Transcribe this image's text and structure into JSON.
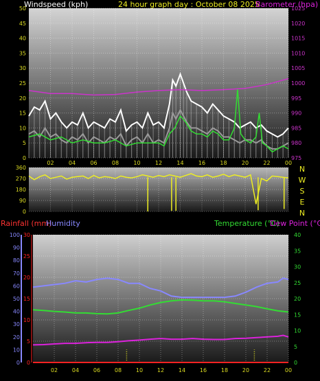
{
  "header": {
    "windspeed_label": "Windspeed (kph)",
    "title": "24 hour graph day : October 08 2025",
    "barometer_label": "Barometer (hpa)"
  },
  "panel2": {
    "directions": [
      "N",
      "W",
      "S",
      "E",
      "N"
    ]
  },
  "panel3_header": {
    "rainfall_label": "Rainfall (mm)",
    "humidity_label": "Humidity",
    "temperature_label": "Temperature (°C)",
    "dewpoint_label": "Dew Point (°C)"
  },
  "colors": {
    "wind": "#ffffff",
    "gust_dark": "#9a9a9a",
    "avg_wind": "#33dd33",
    "barometer": "#cc33cc",
    "direction": "#eeee22",
    "rainfall": "#ff2222",
    "humidity": "#8888ff",
    "temperature": "#33dd33",
    "dewpoint": "#dd22dd",
    "tick_text": "#dddd22"
  },
  "chart_data": [
    {
      "type": "line",
      "name": "wind-barometer",
      "x_ticks": [
        "02",
        "04",
        "06",
        "08",
        "10",
        "12",
        "14",
        "16",
        "18",
        "20",
        "22",
        "00"
      ],
      "y_left_ticks": [
        "0",
        "5",
        "10",
        "15",
        "20",
        "25",
        "30",
        "35",
        "40",
        "45",
        "50"
      ],
      "y_right_ticks": [
        "975",
        "980",
        "985",
        "990",
        "995",
        "1000",
        "1005",
        "1010",
        "1015",
        "1020",
        "1025"
      ],
      "ylim_left": [
        0,
        50
      ],
      "ylim_right": [
        975,
        1025
      ],
      "xlim": [
        0,
        24
      ],
      "series": [
        {
          "name": "Windspeed (kph)",
          "role": "gust",
          "x": [
            0,
            0.5,
            1,
            1.5,
            2,
            2.5,
            3,
            3.5,
            4,
            4.5,
            5,
            5.5,
            6,
            6.5,
            7,
            7.5,
            8,
            8.5,
            9,
            9.5,
            10,
            10.5,
            11,
            11.5,
            12,
            12.5,
            13,
            13.3,
            13.6,
            14,
            14.3,
            14.6,
            15,
            15.5,
            16,
            16.5,
            17,
            17.5,
            18,
            18.5,
            19,
            19.5,
            20,
            20.5,
            21,
            21.5,
            22,
            22.5,
            23,
            23.5,
            24
          ],
          "values": [
            14,
            17,
            16,
            19,
            13,
            15,
            12,
            10,
            12,
            11,
            15,
            10,
            12,
            11,
            10,
            13,
            12,
            16,
            9,
            11,
            12,
            10,
            15,
            11,
            12,
            10,
            18,
            26,
            24,
            28,
            25,
            22,
            19,
            18,
            17,
            15,
            18,
            16,
            14,
            13,
            12,
            10,
            11,
            12,
            10,
            11,
            9,
            8,
            7,
            8,
            10
          ]
        },
        {
          "name": "Windspeed (kph)",
          "role": "wind",
          "x": [
            0,
            0.5,
            1,
            1.5,
            2,
            2.5,
            3,
            3.5,
            4,
            4.5,
            5,
            5.5,
            6,
            6.5,
            7,
            7.5,
            8,
            8.5,
            9,
            9.5,
            10,
            10.5,
            11,
            11.5,
            12,
            12.5,
            13,
            13.3,
            13.6,
            14,
            14.3,
            14.6,
            15,
            15.5,
            16,
            16.5,
            17,
            17.5,
            18,
            18.5,
            19,
            19.5,
            20,
            20.5,
            21,
            21.5,
            22,
            22.5,
            23,
            23.5,
            24
          ],
          "values": [
            8,
            9,
            7,
            10,
            7,
            8,
            6,
            5,
            7,
            6,
            8,
            5,
            7,
            6,
            5,
            7,
            6,
            8,
            4,
            6,
            7,
            5,
            8,
            5,
            6,
            5,
            10,
            15,
            13,
            16,
            14,
            12,
            10,
            10,
            9,
            8,
            10,
            9,
            7,
            7,
            6,
            5,
            6,
            6,
            5,
            6,
            4,
            3,
            3,
            4,
            5
          ]
        },
        {
          "name": "Average wind",
          "role": "avg",
          "x": [
            0,
            1,
            2,
            3,
            4,
            5,
            6,
            7,
            8,
            9,
            10,
            11,
            12,
            12.5,
            13,
            13.5,
            14,
            14.5,
            15,
            15.5,
            16,
            16.5,
            17,
            17.5,
            18,
            18.5,
            19,
            19.3,
            19.6,
            20,
            20.5,
            21,
            21.3,
            21.6,
            22,
            22.5,
            23,
            23.5,
            24
          ],
          "values": [
            7,
            8,
            6,
            7,
            5,
            6,
            5,
            5,
            6,
            4,
            5,
            5,
            5,
            4,
            8,
            10,
            14,
            12,
            9,
            8,
            8,
            7,
            9,
            8,
            6,
            6,
            10,
            23,
            8,
            6,
            5,
            7,
            15,
            5,
            4,
            2,
            3,
            4,
            3
          ]
        },
        {
          "name": "Barometer (hpa)",
          "role": "barometer",
          "x": [
            0,
            2,
            4,
            6,
            8,
            10,
            12,
            14,
            16,
            18,
            20,
            22,
            23,
            24
          ],
          "values": [
            997.5,
            996.5,
            996.5,
            996,
            996.2,
            997,
            997.5,
            997.8,
            997.5,
            997.8,
            998.2,
            999.5,
            1000.5,
            1001.5
          ]
        }
      ]
    },
    {
      "type": "scatter",
      "name": "wind-direction",
      "y_ticks": [
        "0",
        "90",
        "180",
        "270",
        "360"
      ],
      "ylim": [
        0,
        360
      ],
      "xlim": [
        0,
        24
      ],
      "series": [
        {
          "name": "Wind direction",
          "x": [
            0,
            0.5,
            1,
            1.5,
            2,
            2.5,
            3,
            3.5,
            4,
            4.5,
            5,
            5.5,
            6,
            6.5,
            7,
            7.5,
            8,
            8.5,
            9,
            9.5,
            10,
            10.5,
            11,
            11.5,
            12,
            12.5,
            13,
            13.5,
            14,
            14.5,
            15,
            15.5,
            16,
            16.5,
            17,
            17.5,
            18,
            18.5,
            19,
            19.5,
            20,
            20.5,
            21,
            21.5,
            22,
            22.5,
            23,
            23.5,
            24
          ],
          "values": [
            290,
            260,
            285,
            300,
            270,
            280,
            290,
            265,
            280,
            285,
            290,
            270,
            295,
            275,
            285,
            280,
            270,
            290,
            280,
            275,
            285,
            300,
            290,
            280,
            295,
            285,
            300,
            290,
            280,
            295,
            310,
            290,
            285,
            300,
            280,
            290,
            305,
            285,
            300,
            290,
            280,
            300,
            60,
            270,
            250,
            290,
            285,
            280,
            275
          ]
        },
        {
          "name": "Direction drops",
          "x": [
            11.0,
            13.2,
            13.6,
            21.2,
            23.6
          ],
          "values": [
            0,
            5,
            5,
            10,
            20
          ]
        }
      ]
    },
    {
      "type": "line",
      "name": "humidity-temperature",
      "x_ticks": [
        "02",
        "04",
        "06",
        "08",
        "10",
        "12",
        "14",
        "16",
        "18",
        "20",
        "22",
        "00"
      ],
      "y_humidity_ticks": [
        "0",
        "10",
        "20",
        "30",
        "40",
        "50",
        "60",
        "70",
        "80",
        "90",
        "100"
      ],
      "y_rain_ticks": [
        "0",
        "5",
        "10",
        "15",
        "20",
        "25",
        "30"
      ],
      "y_temp_ticks": [
        "0",
        "5",
        "10",
        "15",
        "20",
        "25",
        "30",
        "35",
        "40"
      ],
      "ylim_humidity": [
        0,
        100
      ],
      "ylim_rain": [
        0,
        30
      ],
      "ylim_temp": [
        0,
        40
      ],
      "xlim": [
        0,
        24
      ],
      "series": [
        {
          "name": "Humidity",
          "role": "humidity",
          "x": [
            0,
            1,
            2,
            3,
            4,
            5,
            6,
            7,
            8,
            9,
            10,
            11,
            12,
            13,
            14,
            15,
            16,
            17,
            18,
            19,
            20,
            21,
            22,
            23,
            23.5,
            24
          ],
          "values": [
            59,
            60,
            61,
            62,
            64,
            63,
            65,
            66,
            65,
            62,
            62,
            58,
            56,
            52,
            51,
            51,
            51,
            51,
            51,
            52,
            55,
            59,
            62,
            63,
            66,
            65
          ]
        },
        {
          "name": "Temperature (°C)",
          "role": "temperature",
          "x": [
            0,
            1,
            2,
            3,
            4,
            5,
            6,
            7,
            8,
            9,
            10,
            11,
            12,
            13,
            14,
            15,
            16,
            17,
            18,
            19,
            20,
            21,
            22,
            23,
            24
          ],
          "values": [
            16.5,
            16.3,
            16,
            15.8,
            15.5,
            15.5,
            15.3,
            15.2,
            15.5,
            16.3,
            17,
            18,
            18.8,
            19.3,
            19.6,
            19.5,
            19.3,
            19.3,
            19,
            18.5,
            18,
            17.5,
            16.8,
            16.2,
            15.8
          ]
        },
        {
          "name": "Dew Point (°C)",
          "role": "dewpoint",
          "x": [
            0,
            1,
            2,
            3,
            4,
            5,
            6,
            7,
            8,
            9,
            10,
            11,
            12,
            13,
            14,
            15,
            16,
            17,
            18,
            19,
            20,
            21,
            22,
            23,
            23.5,
            24
          ],
          "values": [
            5.5,
            5.6,
            5.8,
            6,
            6,
            6.2,
            6.3,
            6.3,
            6.5,
            6.8,
            7,
            7.3,
            7.5,
            7.3,
            7.3,
            7.5,
            7.3,
            7.2,
            7.2,
            7.5,
            7.6,
            7.8,
            8,
            8.2,
            8.5,
            8
          ]
        },
        {
          "name": "Rainfall (mm)",
          "role": "rainfall",
          "x": [
            0,
            24
          ],
          "values": [
            0,
            0
          ]
        }
      ],
      "day_markers": [
        8.8,
        20.8
      ]
    }
  ]
}
